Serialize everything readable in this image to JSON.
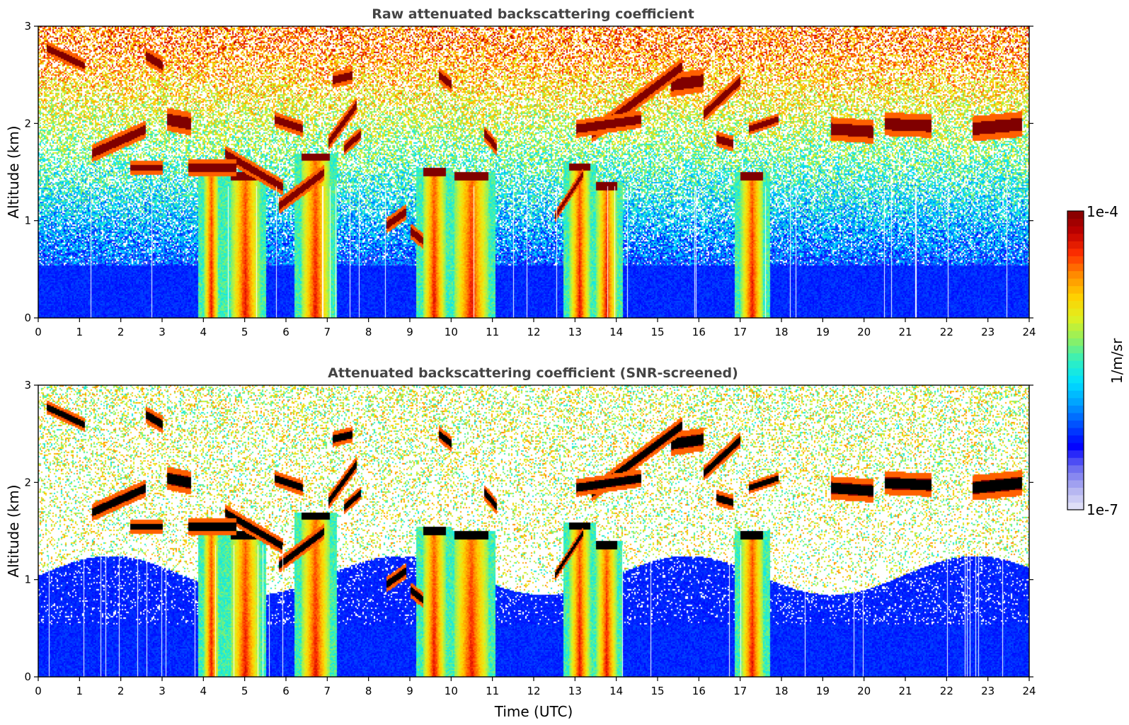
{
  "figure": {
    "colorbar": {
      "max_label": "1e-4",
      "min_label": "1e-7",
      "unit_label": "1/m/sr",
      "vmin": 1e-07,
      "vmax": 0.0001,
      "scale": "log",
      "colormap": [
        "#e8e8f8",
        "#b0b0f0",
        "#6a6af0",
        "#0000ff",
        "#0050ff",
        "#00a0ff",
        "#00e0ff",
        "#30f0c0",
        "#90f060",
        "#e0f020",
        "#ffd000",
        "#ff8c00",
        "#ff3000",
        "#c00000",
        "#800000"
      ]
    }
  },
  "chart_data": [
    {
      "type": "heatmap",
      "title": "Raw attenuated backscattering coefficient",
      "xlabel": "",
      "ylabel": "Altitude (km)",
      "xlim": [
        0,
        24
      ],
      "ylim": [
        0,
        3
      ],
      "xticks": [
        "0",
        "1",
        "2",
        "3",
        "4",
        "5",
        "6",
        "7",
        "8",
        "9",
        "10",
        "11",
        "12",
        "13",
        "14",
        "15",
        "16",
        "17",
        "18",
        "19",
        "20",
        "21",
        "22",
        "23",
        "24"
      ],
      "yticks": [
        "0",
        "1",
        "2",
        "3"
      ],
      "screened": false,
      "x_unit": "hours UTC",
      "y_unit": "km",
      "grid": false,
      "features": {
        "cloud_layers": [
          {
            "t0": 0.2,
            "t1": 1.1,
            "h0": 2.78,
            "h1": 2.6,
            "thick": 0.07
          },
          {
            "t0": 1.3,
            "t1": 2.6,
            "h0": 1.7,
            "h1": 1.95,
            "thick": 0.09
          },
          {
            "t0": 2.2,
            "t1": 3.0,
            "h0": 1.55,
            "h1": 1.55,
            "thick": 0.07
          },
          {
            "t0": 2.6,
            "t1": 3.0,
            "h0": 2.7,
            "h1": 2.6,
            "thick": 0.09
          },
          {
            "t0": 3.1,
            "t1": 3.7,
            "h0": 2.05,
            "h1": 2.0,
            "thick": 0.12
          },
          {
            "t0": 3.6,
            "t1": 4.8,
            "h0": 1.55,
            "h1": 1.55,
            "thick": 0.09
          },
          {
            "t0": 4.5,
            "t1": 5.9,
            "h0": 1.7,
            "h1": 1.35,
            "thick": 0.08
          },
          {
            "t0": 5.7,
            "t1": 6.4,
            "h0": 2.05,
            "h1": 1.95,
            "thick": 0.08
          },
          {
            "t0": 5.8,
            "t1": 6.9,
            "h0": 1.15,
            "h1": 1.5,
            "thick": 0.08
          },
          {
            "t0": 7.0,
            "t1": 7.7,
            "h0": 1.8,
            "h1": 2.2,
            "thick": 0.08
          },
          {
            "t0": 7.1,
            "t1": 7.6,
            "h0": 2.45,
            "h1": 2.5,
            "thick": 0.08
          },
          {
            "t0": 7.4,
            "t1": 7.8,
            "h0": 1.75,
            "h1": 1.9,
            "thick": 0.07
          },
          {
            "t0": 8.4,
            "t1": 8.9,
            "h0": 0.95,
            "h1": 1.1,
            "thick": 0.08
          },
          {
            "t0": 9.0,
            "t1": 9.3,
            "h0": 0.9,
            "h1": 0.8,
            "thick": 0.08
          },
          {
            "t0": 9.7,
            "t1": 10.0,
            "h0": 2.5,
            "h1": 2.4,
            "thick": 0.08
          },
          {
            "t0": 10.8,
            "t1": 11.1,
            "h0": 1.9,
            "h1": 1.75,
            "thick": 0.08
          },
          {
            "t0": 12.5,
            "t1": 13.2,
            "h0": 1.05,
            "h1": 1.5,
            "thick": 0.06
          },
          {
            "t0": 13.0,
            "t1": 14.6,
            "h0": 1.95,
            "h1": 2.05,
            "thick": 0.09
          },
          {
            "t0": 13.4,
            "t1": 15.6,
            "h0": 1.9,
            "h1": 2.6,
            "thick": 0.09
          },
          {
            "t0": 15.3,
            "t1": 16.1,
            "h0": 2.4,
            "h1": 2.45,
            "thick": 0.12
          },
          {
            "t0": 16.1,
            "t1": 17.0,
            "h0": 2.1,
            "h1": 2.45,
            "thick": 0.08
          },
          {
            "t0": 16.4,
            "t1": 16.8,
            "h0": 1.85,
            "h1": 1.8,
            "thick": 0.08
          },
          {
            "t0": 17.2,
            "t1": 17.9,
            "h0": 1.95,
            "h1": 2.05,
            "thick": 0.06
          },
          {
            "t0": 19.2,
            "t1": 20.2,
            "h0": 1.95,
            "h1": 1.92,
            "thick": 0.12
          },
          {
            "t0": 20.5,
            "t1": 21.6,
            "h0": 2.0,
            "h1": 1.98,
            "thick": 0.12
          },
          {
            "t0": 22.6,
            "t1": 23.8,
            "h0": 1.95,
            "h1": 2.0,
            "thick": 0.13
          }
        ],
        "rain_shafts": [
          {
            "t0": 4.0,
            "t1": 4.35,
            "top": 1.6
          },
          {
            "t0": 4.65,
            "t1": 5.35,
            "top": 1.5
          },
          {
            "t0": 6.35,
            "t1": 7.05,
            "top": 1.7
          },
          {
            "t0": 9.3,
            "t1": 9.85,
            "top": 1.55
          },
          {
            "t0": 10.05,
            "t1": 10.9,
            "top": 1.5
          },
          {
            "t0": 12.85,
            "t1": 13.35,
            "top": 1.6
          },
          {
            "t0": 13.5,
            "t1": 14.0,
            "top": 1.4
          },
          {
            "t0": 17.0,
            "t1": 17.55,
            "top": 1.5
          }
        ]
      }
    },
    {
      "type": "heatmap",
      "title": "Attenuated backscattering coefficient (SNR-screened)",
      "xlabel": "Time (UTC)",
      "ylabel": "Altitude (km)",
      "xlim": [
        0,
        24
      ],
      "ylim": [
        0,
        3
      ],
      "xticks": [
        "0",
        "1",
        "2",
        "3",
        "4",
        "5",
        "6",
        "7",
        "8",
        "9",
        "10",
        "11",
        "12",
        "13",
        "14",
        "15",
        "16",
        "17",
        "18",
        "19",
        "20",
        "21",
        "22",
        "23",
        "24"
      ],
      "yticks": [
        "0",
        "1",
        "2",
        "3"
      ],
      "screened": true,
      "x_unit": "hours UTC",
      "y_unit": "km",
      "grid": false
    }
  ]
}
